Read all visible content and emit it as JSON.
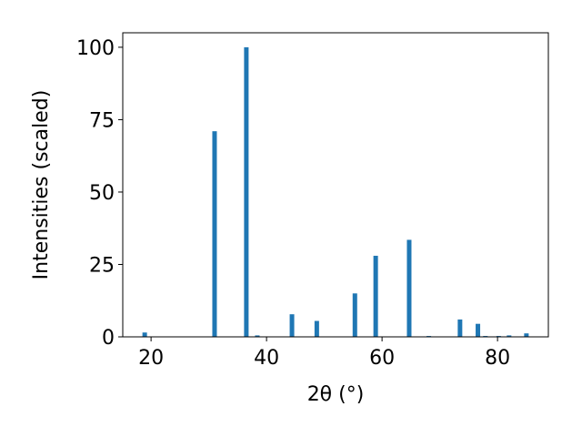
{
  "chart_data": {
    "type": "bar",
    "x_label": "2θ (°)",
    "y_label": "Intensities (scaled)",
    "x": [
      18.9,
      31.0,
      36.5,
      38.4,
      44.4,
      48.7,
      55.3,
      58.9,
      64.7,
      68.1,
      73.5,
      76.6,
      77.9,
      80.2,
      82.0,
      85.0
    ],
    "values": [
      1.5,
      71,
      100,
      0.5,
      7.8,
      5.5,
      15,
      28,
      33.5,
      0.3,
      6,
      4.5,
      0.3,
      0.3,
      0.5,
      1.2
    ],
    "color": "#1f77b4",
    "xlim": [
      15.1,
      88.8
    ],
    "xticks": [
      20,
      40,
      60,
      80
    ],
    "ylim": [
      0,
      105
    ],
    "yticks": [
      0,
      25,
      50,
      75,
      100
    ]
  }
}
